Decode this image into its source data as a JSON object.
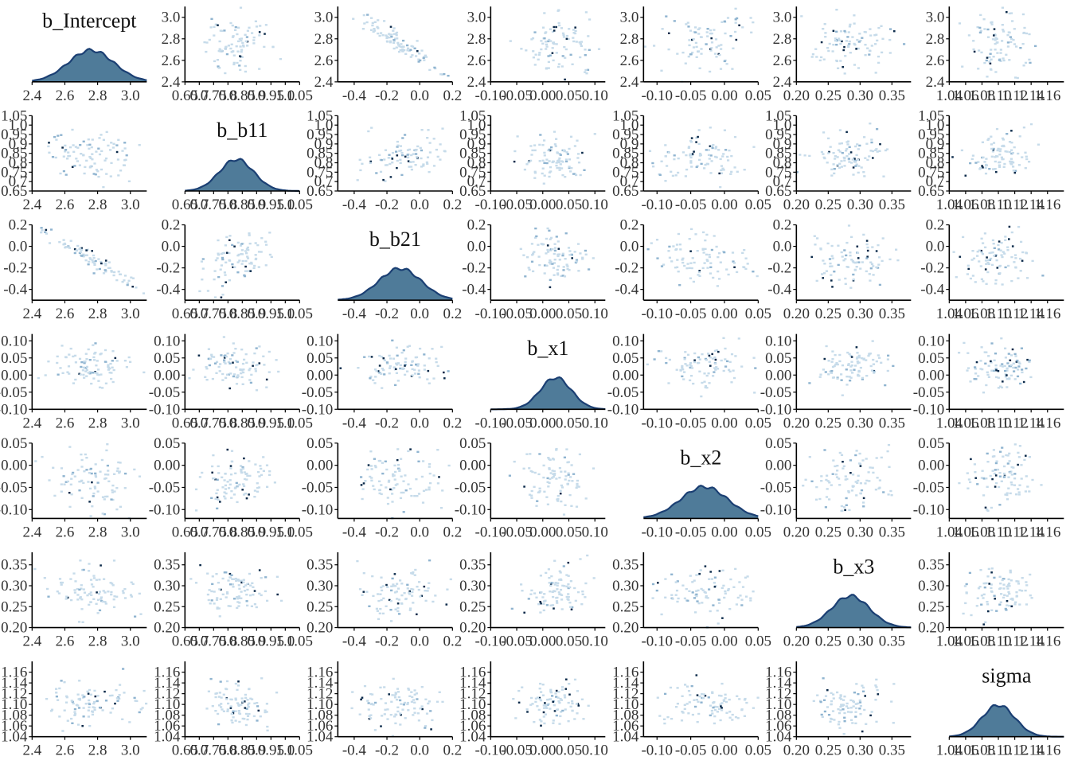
{
  "chart_data": {
    "type": "pairs",
    "grid": false,
    "colors": {
      "density_fill": "#4f7b99",
      "density_line": "#1b3f73",
      "hex_light": "#c6dbea",
      "hex_mid": "#8fb4d0",
      "hex_dark": "#0b2a4a",
      "axis": "#000000"
    },
    "parameters": [
      {
        "name": "b_Intercept",
        "mean": 2.76,
        "sd": 0.14,
        "ticks": [
          {
            "v": 2.4,
            "t": "2.4"
          },
          {
            "v": 2.6,
            "t": "2.6"
          },
          {
            "v": 2.8,
            "t": "2.8"
          },
          {
            "v": 3.0,
            "t": "3.0"
          }
        ],
        "range": [
          2.4,
          3.1
        ]
      },
      {
        "name": "b_b11",
        "mean": 0.83,
        "sd": 0.06,
        "ticks": [
          {
            "v": 0.65,
            "t": "0.65"
          },
          {
            "v": 0.7,
            "t": "0.7"
          },
          {
            "v": 0.75,
            "t": "0.75"
          },
          {
            "v": 0.8,
            "t": "0.8"
          },
          {
            "v": 0.85,
            "t": "0.85"
          },
          {
            "v": 0.9,
            "t": "0.9"
          },
          {
            "v": 0.95,
            "t": "0.95"
          },
          {
            "v": 1.0,
            "t": "1.0"
          },
          {
            "v": 1.05,
            "t": "1.05"
          }
        ],
        "range": [
          0.65,
          1.05
        ]
      },
      {
        "name": "b_b21",
        "mean": -0.12,
        "sd": 0.13,
        "ticks": [
          {
            "v": -0.4,
            "t": "-0.4"
          },
          {
            "v": -0.2,
            "t": "-0.2"
          },
          {
            "v": 0.0,
            "t": "0.0"
          },
          {
            "v": 0.2,
            "t": "0.2"
          }
        ],
        "range": [
          -0.5,
          0.2
        ]
      },
      {
        "name": "b_x1",
        "mean": 0.025,
        "sd": 0.03,
        "ticks": [
          {
            "v": -0.1,
            "t": "-0.10"
          },
          {
            "v": -0.05,
            "t": "-0.05"
          },
          {
            "v": 0.0,
            "t": "0.00"
          },
          {
            "v": 0.05,
            "t": "0.05"
          },
          {
            "v": 0.1,
            "t": "0.10"
          }
        ],
        "range": [
          -0.1,
          0.12
        ]
      },
      {
        "name": "b_x2",
        "mean": -0.03,
        "sd": 0.035,
        "ticks": [
          {
            "v": -0.1,
            "t": "-0.10"
          },
          {
            "v": -0.05,
            "t": "-0.05"
          },
          {
            "v": 0.0,
            "t": "0.00"
          },
          {
            "v": 0.05,
            "t": "0.05"
          }
        ],
        "range": [
          -0.12,
          0.05
        ]
      },
      {
        "name": "b_x3",
        "mean": 0.285,
        "sd": 0.03,
        "ticks": [
          {
            "v": 0.2,
            "t": "0.20"
          },
          {
            "v": 0.25,
            "t": "0.25"
          },
          {
            "v": 0.3,
            "t": "0.30"
          },
          {
            "v": 0.35,
            "t": "0.35"
          }
        ],
        "range": [
          0.2,
          0.38
        ]
      },
      {
        "name": "sigma",
        "mean": 1.1,
        "sd": 0.02,
        "ticks": [
          {
            "v": 1.04,
            "t": "1.04"
          },
          {
            "v": 1.06,
            "t": "1.06"
          },
          {
            "v": 1.08,
            "t": "1.08"
          },
          {
            "v": 1.1,
            "t": "1.10"
          },
          {
            "v": 1.12,
            "t": "1.12"
          },
          {
            "v": 1.14,
            "t": "1.14"
          },
          {
            "v": 1.16,
            "t": "1.16"
          }
        ],
        "range": [
          1.04,
          1.18
        ]
      }
    ],
    "correlations": [
      [
        1,
        0,
        -0.95,
        0,
        0,
        0,
        0
      ],
      [
        0,
        1,
        0.3,
        0,
        0,
        0,
        0
      ],
      [
        -0.95,
        0.3,
        1,
        0,
        0,
        0,
        0
      ],
      [
        0,
        0,
        0,
        1,
        0,
        0,
        0
      ],
      [
        0,
        0,
        0,
        0,
        1,
        0,
        0
      ],
      [
        0,
        0,
        0,
        0,
        0,
        1,
        0
      ],
      [
        0,
        0,
        0,
        0,
        0,
        0,
        1
      ]
    ]
  }
}
